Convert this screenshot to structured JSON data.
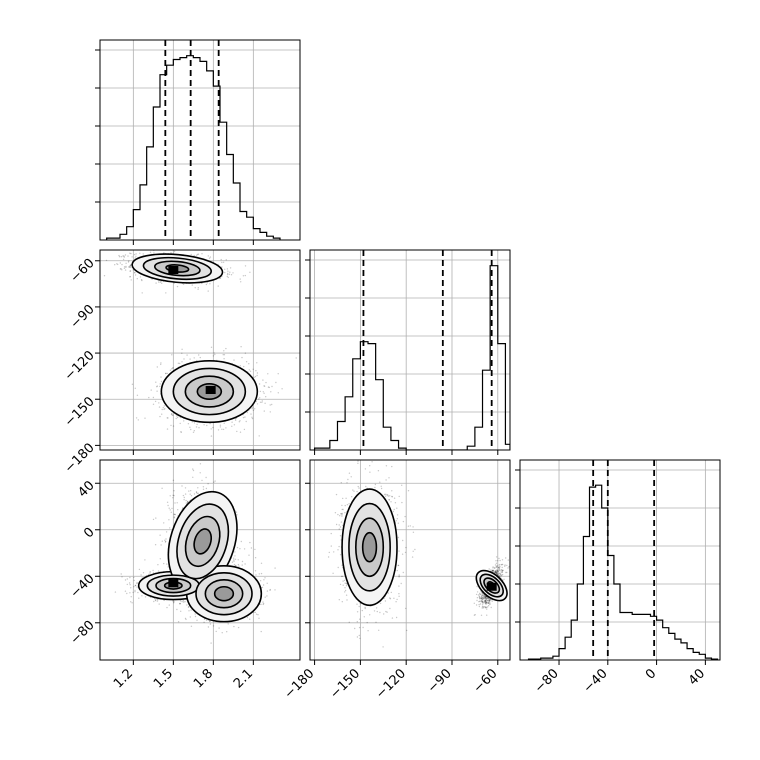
{
  "chart_data": [
    {
      "id": "hist-p0",
      "type": "histogram",
      "xlim": [
        0.95,
        2.45
      ],
      "x_ticks": [
        1.2,
        1.5,
        1.8,
        2.1
      ],
      "y_ticks": [
        0.2,
        0.4,
        0.6,
        0.8,
        1.0
      ],
      "grid": true,
      "bins": [
        {
          "x0": 1.0,
          "x1": 1.1,
          "count": 0.01
        },
        {
          "x0": 1.1,
          "x1": 1.15,
          "count": 0.03
        },
        {
          "x0": 1.15,
          "x1": 1.2,
          "count": 0.07
        },
        {
          "x0": 1.2,
          "x1": 1.25,
          "count": 0.16
        },
        {
          "x0": 1.25,
          "x1": 1.3,
          "count": 0.29
        },
        {
          "x0": 1.3,
          "x1": 1.35,
          "count": 0.49
        },
        {
          "x0": 1.35,
          "x1": 1.4,
          "count": 0.7
        },
        {
          "x0": 1.4,
          "x1": 1.45,
          "count": 0.87
        },
        {
          "x0": 1.45,
          "x1": 1.5,
          "count": 0.92
        },
        {
          "x0": 1.5,
          "x1": 1.55,
          "count": 0.95
        },
        {
          "x0": 1.55,
          "x1": 1.6,
          "count": 0.96
        },
        {
          "x0": 1.6,
          "x1": 1.65,
          "count": 0.97
        },
        {
          "x0": 1.65,
          "x1": 1.7,
          "count": 0.96
        },
        {
          "x0": 1.7,
          "x1": 1.75,
          "count": 0.94
        },
        {
          "x0": 1.75,
          "x1": 1.8,
          "count": 0.89
        },
        {
          "x0": 1.8,
          "x1": 1.85,
          "count": 0.81
        },
        {
          "x0": 1.85,
          "x1": 1.9,
          "count": 0.62
        },
        {
          "x0": 1.9,
          "x1": 1.95,
          "count": 0.45
        },
        {
          "x0": 1.95,
          "x1": 2.0,
          "count": 0.3
        },
        {
          "x0": 2.0,
          "x1": 2.05,
          "count": 0.15
        },
        {
          "x0": 2.05,
          "x1": 2.1,
          "count": 0.12
        },
        {
          "x0": 2.1,
          "x1": 2.15,
          "count": 0.06
        },
        {
          "x0": 2.15,
          "x1": 2.2,
          "count": 0.04
        },
        {
          "x0": 2.2,
          "x1": 2.25,
          "count": 0.02
        },
        {
          "x0": 2.25,
          "x1": 2.3,
          "count": 0.01
        }
      ],
      "quantiles": [
        1.44,
        1.63,
        1.84
      ]
    },
    {
      "id": "hist-p1",
      "type": "histogram",
      "xlim": [
        -183,
        -52
      ],
      "x_ticks": [
        -180,
        -150,
        -120,
        -90,
        -60
      ],
      "y_ticks": [
        0.2,
        0.4,
        0.6,
        0.8,
        1.0
      ],
      "grid": true,
      "bins": [
        {
          "x0": -180,
          "x1": -170,
          "count": 0.01
        },
        {
          "x0": -170,
          "x1": -165,
          "count": 0.05
        },
        {
          "x0": -165,
          "x1": -160,
          "count": 0.15
        },
        {
          "x0": -160,
          "x1": -155,
          "count": 0.28
        },
        {
          "x0": -155,
          "x1": -150,
          "count": 0.48
        },
        {
          "x0": -150,
          "x1": -145,
          "count": 0.57
        },
        {
          "x0": -145,
          "x1": -140,
          "count": 0.56
        },
        {
          "x0": -140,
          "x1": -135,
          "count": 0.37
        },
        {
          "x0": -135,
          "x1": -130,
          "count": 0.12
        },
        {
          "x0": -130,
          "x1": -125,
          "count": 0.05
        },
        {
          "x0": -125,
          "x1": -120,
          "count": 0.01
        },
        {
          "x0": -80,
          "x1": -75,
          "count": 0.02
        },
        {
          "x0": -75,
          "x1": -70,
          "count": 0.12
        },
        {
          "x0": -70,
          "x1": -65,
          "count": 0.42
        },
        {
          "x0": -65,
          "x1": -60,
          "count": 0.97
        },
        {
          "x0": -60,
          "x1": -55,
          "count": 0.56
        },
        {
          "x0": -55,
          "x1": -52,
          "count": 0.03
        }
      ],
      "quantiles": [
        -148,
        -96,
        -64
      ]
    },
    {
      "id": "hist-p2",
      "type": "histogram",
      "xlim": [
        -112,
        52
      ],
      "x_ticks": [
        -80,
        -40,
        0,
        40
      ],
      "y_ticks": [
        0.2,
        0.4,
        0.6,
        0.8,
        1.0
      ],
      "grid": true,
      "bins": [
        {
          "x0": -105,
          "x1": -95,
          "count": 0.005
        },
        {
          "x0": -95,
          "x1": -85,
          "count": 0.01
        },
        {
          "x0": -85,
          "x1": -80,
          "count": 0.02
        },
        {
          "x0": -80,
          "x1": -75,
          "count": 0.06
        },
        {
          "x0": -75,
          "x1": -70,
          "count": 0.12
        },
        {
          "x0": -70,
          "x1": -65,
          "count": 0.21
        },
        {
          "x0": -65,
          "x1": -60,
          "count": 0.4
        },
        {
          "x0": -60,
          "x1": -55,
          "count": 0.65
        },
        {
          "x0": -55,
          "x1": -50,
          "count": 0.91
        },
        {
          "x0": -50,
          "x1": -45,
          "count": 0.92
        },
        {
          "x0": -45,
          "x1": -40,
          "count": 0.8
        },
        {
          "x0": -40,
          "x1": -35,
          "count": 0.55
        },
        {
          "x0": -35,
          "x1": -30,
          "count": 0.4
        },
        {
          "x0": -30,
          "x1": -25,
          "count": 0.25
        },
        {
          "x0": -25,
          "x1": -20,
          "count": 0.25
        },
        {
          "x0": -20,
          "x1": -15,
          "count": 0.24
        },
        {
          "x0": -15,
          "x1": -10,
          "count": 0.24
        },
        {
          "x0": -10,
          "x1": -5,
          "count": 0.24
        },
        {
          "x0": -5,
          "x1": 0,
          "count": 0.23
        },
        {
          "x0": 0,
          "x1": 5,
          "count": 0.21
        },
        {
          "x0": 5,
          "x1": 10,
          "count": 0.17
        },
        {
          "x0": 10,
          "x1": 15,
          "count": 0.14
        },
        {
          "x0": 15,
          "x1": 20,
          "count": 0.11
        },
        {
          "x0": 20,
          "x1": 25,
          "count": 0.09
        },
        {
          "x0": 25,
          "x1": 30,
          "count": 0.06
        },
        {
          "x0": 30,
          "x1": 35,
          "count": 0.04
        },
        {
          "x0": 35,
          "x1": 40,
          "count": 0.03
        },
        {
          "x0": 40,
          "x1": 45,
          "count": 0.01
        },
        {
          "x0": 45,
          "x1": 50,
          "count": 0.005
        }
      ],
      "quantiles": [
        -52,
        -40,
        -2
      ]
    },
    {
      "id": "scatter-p0-p1",
      "type": "scatter",
      "x_param": 0,
      "y_param": 1,
      "xlim": [
        0.95,
        2.45
      ],
      "ylim": [
        -183,
        -53
      ],
      "x_ticks": [
        1.2,
        1.5,
        1.8,
        2.1
      ],
      "y_ticks": [
        -180,
        -150,
        -120,
        -90,
        -60
      ],
      "grid": true,
      "clusters": [
        {
          "cx": 1.53,
          "cy": -65,
          "sx": 0.17,
          "sy": 4.5,
          "rho": -0.3,
          "weight": 0.5
        },
        {
          "cx": 1.77,
          "cy": -145,
          "sx": 0.18,
          "sy": 10,
          "rho": 0.0,
          "weight": 0.5
        }
      ],
      "peaks": [
        [
          1.5,
          -66
        ],
        [
          1.78,
          -144
        ]
      ]
    },
    {
      "id": "scatter-p0-p2",
      "type": "scatter",
      "x_param": 0,
      "y_param": 2,
      "xlim": [
        0.95,
        2.45
      ],
      "ylim": [
        -112,
        60
      ],
      "x_ticks": [
        1.2,
        1.5,
        1.8,
        2.1
      ],
      "y_ticks": [
        -80,
        -40,
        0,
        40
      ],
      "grid": true,
      "clusters": [
        {
          "cx": 1.5,
          "cy": -48,
          "sx": 0.13,
          "sy": 6,
          "rho": 0.0,
          "weight": 0.32
        },
        {
          "cx": 1.72,
          "cy": -10,
          "sx": 0.12,
          "sy": 22,
          "rho": -0.2,
          "weight": 0.4
        },
        {
          "cx": 1.88,
          "cy": -55,
          "sx": 0.14,
          "sy": 12,
          "rho": 0.0,
          "weight": 0.28
        }
      ],
      "peaks": [
        [
          1.5,
          -46
        ]
      ]
    },
    {
      "id": "scatter-p1-p2",
      "type": "scatter",
      "x_param": 1,
      "y_param": 2,
      "xlim": [
        -183,
        -52
      ],
      "ylim": [
        -112,
        60
      ],
      "x_ticks": [
        -180,
        -150,
        -120,
        -90,
        -60
      ],
      "y_ticks": [
        -80,
        -40,
        0,
        40
      ],
      "grid": true,
      "clusters": [
        {
          "cx": -144,
          "cy": -15,
          "sx": 9,
          "sy": 25,
          "rho": 0.0,
          "weight": 0.6
        },
        {
          "cx": -64,
          "cy": -48,
          "sx": 3.5,
          "sy": 8,
          "rho": 0.6,
          "weight": 0.4
        }
      ],
      "peaks": [
        [
          -64,
          -49
        ]
      ]
    }
  ],
  "tick_text": {
    "p0": [
      "1.2",
      "1.5",
      "1.8",
      "2.1"
    ],
    "p1": [
      "−180",
      "−150",
      "−120",
      "−90",
      "−60"
    ],
    "p2": [
      "−80",
      "−40",
      "0",
      "40"
    ]
  }
}
